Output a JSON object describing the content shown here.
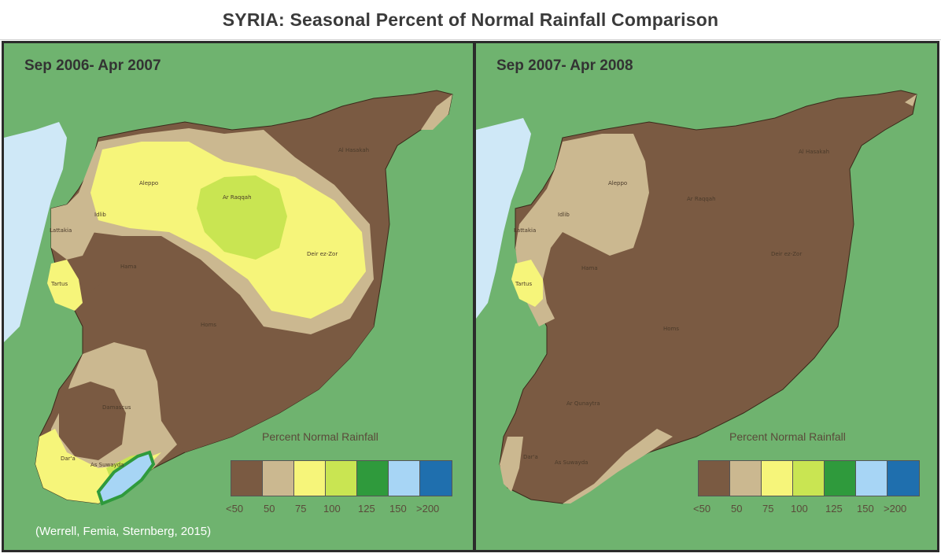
{
  "title": "SYRIA: Seasonal Percent of Normal Rainfall Comparison",
  "panels": [
    {
      "period": "Sep 2006- Apr 2007",
      "cities": [
        "Aleppo",
        "Ar Raqqah",
        "Al Hasakah",
        "Idlib",
        "Lattakia",
        "Hama",
        "Deir ez-Zor",
        "Tartus",
        "Homs",
        "Damascus",
        "Dar'a",
        "As Suwayda"
      ]
    },
    {
      "period": "Sep 2007- Apr 2008",
      "cities": [
        "Aleppo",
        "Ar Raqqah",
        "Al Hasakah",
        "Idlib",
        "Lattakia",
        "Hama",
        "Deir ez-Zor",
        "Tartus",
        "Homs",
        "Ar Qunaytra",
        "Dar'a",
        "As Suwayda"
      ]
    }
  ],
  "legend": {
    "title": "Percent Normal Rainfall",
    "classes": [
      {
        "label": "<50",
        "color": "#7a5a42"
      },
      {
        "label": "50",
        "color": "#cbb890"
      },
      {
        "label": "75",
        "color": "#f6f57a"
      },
      {
        "label": "100",
        "color": "#c9e552"
      },
      {
        "label": "125",
        "color": "#2f9a3c"
      },
      {
        "label": "150",
        "color": "#a7d5f5"
      },
      {
        "label": ">200",
        "color": "#1f6fae"
      }
    ]
  },
  "colors": {
    "background_green": "#6fb36f",
    "sea": "#cfe8f7",
    "below_50": "#7a5a42",
    "pct_50": "#cbb890",
    "pct_75": "#f6f57a",
    "pct_100": "#c9e552",
    "pct_125": "#2f9a3c",
    "pct_150": "#a7d5f5"
  },
  "source": "(Werrell, Femia, Sternberg, 2015)"
}
